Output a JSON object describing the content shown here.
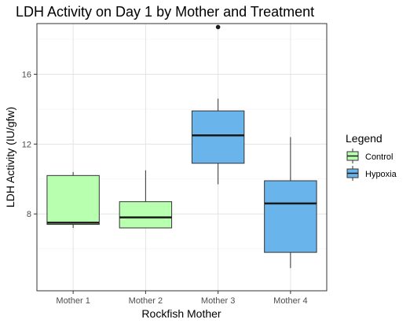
{
  "chart_data": {
    "type": "boxplot",
    "title": "LDH Activity on Day 1 by Mother and Treatment",
    "xlabel": "Rockfish Mother",
    "ylabel": "LDH Activity (IU/gfw)",
    "categories": [
      "Mother 1",
      "Mother 2",
      "Mother 3",
      "Mother 4"
    ],
    "y_ticks": [
      8,
      12,
      16
    ],
    "ylim": [
      3.6,
      18.9
    ],
    "grid": true,
    "legend": {
      "title": "Legend",
      "position": "right",
      "entries": [
        {
          "label": "Control",
          "color": "#b8ffb0"
        },
        {
          "label": "Hypoxia",
          "color": "#6ab4ec"
        }
      ]
    },
    "boxes": [
      {
        "category": "Mother 1",
        "group": "Control",
        "whisker_low": 7.2,
        "q1": 7.4,
        "median": 7.5,
        "q3": 10.2,
        "whisker_high": 10.4,
        "outliers": []
      },
      {
        "category": "Mother 2",
        "group": "Control",
        "whisker_low": 7.2,
        "q1": 7.2,
        "median": 7.8,
        "q3": 8.7,
        "whisker_high": 10.5,
        "outliers": []
      },
      {
        "category": "Mother 3",
        "group": "Hypoxia",
        "whisker_low": 9.7,
        "q1": 10.9,
        "median": 12.5,
        "q3": 13.9,
        "whisker_high": 14.6,
        "outliers": [
          18.7
        ]
      },
      {
        "category": "Mother 4",
        "group": "Hypoxia",
        "whisker_low": 4.9,
        "q1": 5.8,
        "median": 8.6,
        "q3": 9.9,
        "whisker_high": 12.4,
        "outliers": []
      }
    ]
  }
}
